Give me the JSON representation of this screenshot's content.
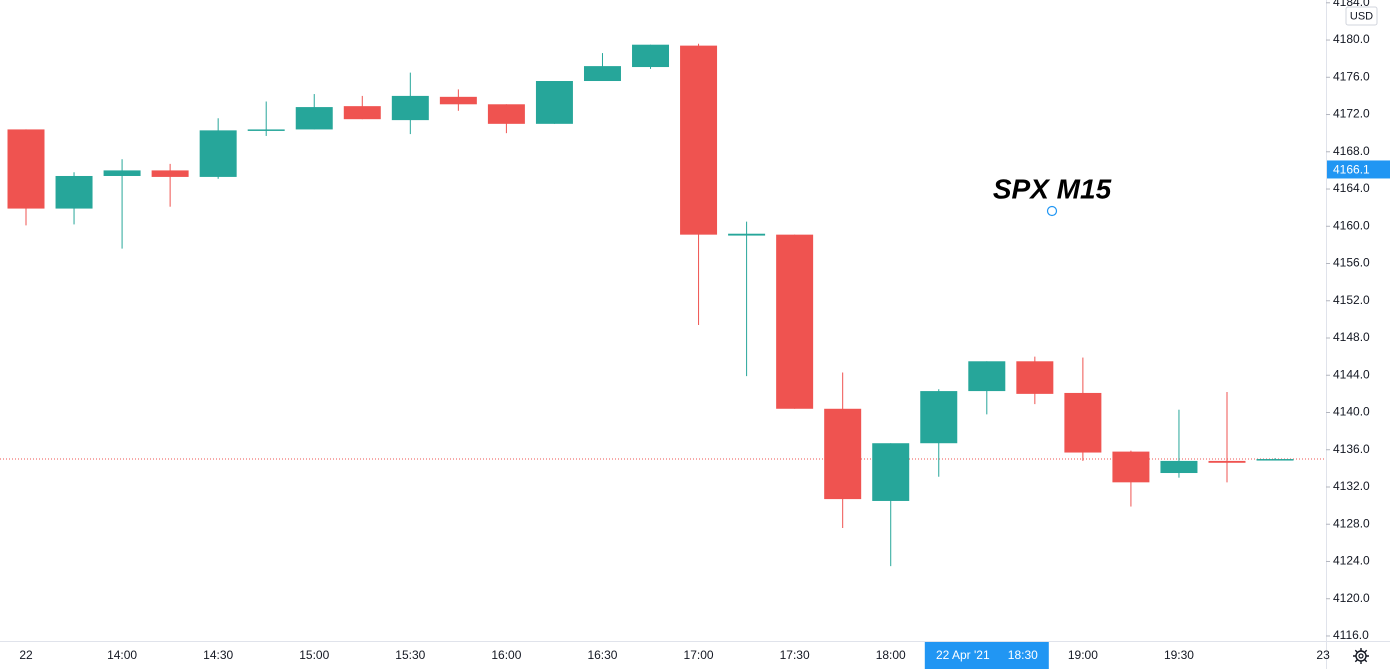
{
  "chart_data": {
    "type": "candlestick",
    "title": "SPX M15",
    "currency": "USD",
    "categories": [
      "22",
      null,
      "14:00",
      null,
      "14:30",
      null,
      "15:00",
      null,
      "15:30",
      null,
      "16:00",
      null,
      "16:30",
      null,
      "17:00",
      null,
      "17:30",
      null,
      "18:00",
      null,
      null,
      null,
      "19:00",
      null,
      "19:30",
      null,
      null,
      "23"
    ],
    "open": [
      4170.4,
      4161.9,
      4165.4,
      4166.0,
      4165.3,
      4170.3,
      4170.4,
      4172.9,
      4171.4,
      4173.9,
      4173.1,
      4171.0,
      4175.6,
      4177.1,
      4179.4,
      4159.0,
      4159.1,
      4140.4,
      4130.5,
      4136.7,
      4142.3,
      4145.5,
      4142.1,
      4135.8,
      4133.5,
      4134.8,
      4134.9,
      null
    ],
    "high": [
      4170.4,
      4165.8,
      4167.2,
      4166.7,
      4171.6,
      4173.4,
      4174.2,
      4174.0,
      4176.5,
      4174.7,
      4173.1,
      4175.6,
      4178.6,
      4179.5,
      4179.6,
      4160.5,
      4159.1,
      4144.3,
      4136.7,
      4142.5,
      4145.5,
      4146.0,
      4145.9,
      4135.9,
      4140.3,
      4142.2,
      4135.1,
      null
    ],
    "low": [
      4160.1,
      4160.2,
      4157.6,
      4162.1,
      4165.1,
      4169.7,
      4170.4,
      4171.5,
      4169.9,
      4172.4,
      4170.0,
      4171.0,
      4175.6,
      4176.9,
      4149.4,
      4143.9,
      4140.4,
      4127.6,
      4123.5,
      4133.1,
      4139.8,
      4140.9,
      4134.8,
      4129.9,
      4133.0,
      4132.5,
      4134.9,
      null
    ],
    "close": [
      4161.9,
      4165.4,
      4166.0,
      4165.3,
      4170.3,
      4170.4,
      4172.8,
      4171.5,
      4174.0,
      4173.1,
      4171.0,
      4175.6,
      4177.2,
      4179.5,
      4159.1,
      4159.2,
      4140.4,
      4130.7,
      4136.7,
      4142.3,
      4145.5,
      4142.0,
      4135.7,
      4132.5,
      4134.8,
      4134.6,
      4135.0,
      null
    ],
    "up_color": "#26a69a",
    "down_color": "#ef5350",
    "ylim": [
      4115.46,
      4184.3
    ],
    "yticks": [
      {
        "value": 4116,
        "label": "4116.0"
      },
      {
        "value": 4120,
        "label": "4120.0"
      },
      {
        "value": 4124,
        "label": "4124.0"
      },
      {
        "value": 4128,
        "label": "4128.0"
      },
      {
        "value": 4132,
        "label": "4132.0"
      },
      {
        "value": 4136,
        "label": "4136.0"
      },
      {
        "value": 4140,
        "label": "4140.0"
      },
      {
        "value": 4144,
        "label": "4144.0"
      },
      {
        "value": 4148,
        "label": "4148.0"
      },
      {
        "value": 4152,
        "label": "4152.0"
      },
      {
        "value": 4156,
        "label": "4156.0"
      },
      {
        "value": 4160,
        "label": "4160.0"
      },
      {
        "value": 4164,
        "label": "4164.0"
      },
      {
        "value": 4168,
        "label": "4168.0"
      },
      {
        "value": 4172,
        "label": "4172.0"
      },
      {
        "value": 4176,
        "label": "4176.0"
      },
      {
        "value": 4180,
        "label": "4180.0"
      },
      {
        "value": 4184,
        "label": "4184.0"
      }
    ],
    "grid": false,
    "last_price": 4135.0,
    "crosshair": {
      "date": "22 Apr '21",
      "time": "18:30",
      "price": 4166.1,
      "color": "#2196f3"
    }
  }
}
